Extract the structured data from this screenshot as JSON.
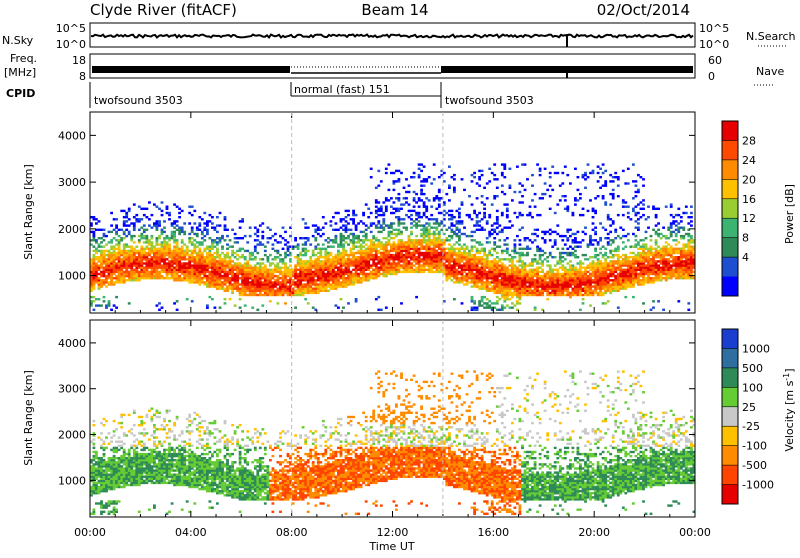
{
  "header": {
    "station": "Clyde River (fitACF)",
    "beam": "Beam 14",
    "date": "02/Oct/2014"
  },
  "noise_panel": {
    "left_label": "N.Sky",
    "right_label": "N.Search",
    "left_ticks": [
      "10^5",
      "10^0"
    ],
    "right_ticks": [
      "10^5",
      "10^0"
    ]
  },
  "freq_panel": {
    "left_label_1": "Freq.",
    "left_label_2": "[MHz]",
    "left_ticks": [
      "18",
      "8"
    ],
    "right_label": "Nave",
    "right_ticks": [
      "60",
      "0"
    ]
  },
  "cpid_panel": {
    "label": "CPID",
    "segments": [
      {
        "name": "twofsound 3503",
        "start_hour": 0,
        "end_hour": 8
      },
      {
        "name": "normal (fast) 151",
        "start_hour": 8,
        "end_hour": 14
      },
      {
        "name": "twofsound 3503",
        "start_hour": 14,
        "end_hour": 24
      }
    ]
  },
  "power_colorbar": {
    "label": "Power [dB]",
    "ticks": [
      "28",
      "24",
      "20",
      "16",
      "12",
      "8",
      "4"
    ],
    "colors": [
      "#e60000",
      "#ff4a00",
      "#ff8c00",
      "#ffc000",
      "#9acd32",
      "#3cb371",
      "#2e8b57",
      "#1e4fd0",
      "#0000ff"
    ]
  },
  "velocity_colorbar": {
    "label": "Velocity [m s",
    "label_sup": "-1",
    "label_end": "]",
    "ticks": [
      "1000",
      "500",
      "100",
      "25",
      "-25",
      "-100",
      "-500",
      "-1000"
    ],
    "colors": [
      "#1a3fd0",
      "#2e6fa0",
      "#2e8b57",
      "#66cc33",
      "#c8c8c8",
      "#ffc000",
      "#ff8c00",
      "#ff4500",
      "#e60000"
    ]
  },
  "chart_data": {
    "type": "heatmap",
    "xlabel": "Time UT",
    "ylabel": "Slant Range [km]",
    "x_range_hours": [
      0,
      24
    ],
    "y_range_km": [
      200,
      4500
    ],
    "x_ticks": [
      "00:00",
      "04:00",
      "08:00",
      "12:00",
      "16:00",
      "20:00",
      "00:00"
    ],
    "x_tick_hours": [
      0,
      4,
      8,
      12,
      16,
      20,
      24
    ],
    "y_ticks": [
      1000,
      2000,
      3000,
      4000
    ],
    "panels": [
      "power",
      "velocity"
    ],
    "grid": false
  }
}
